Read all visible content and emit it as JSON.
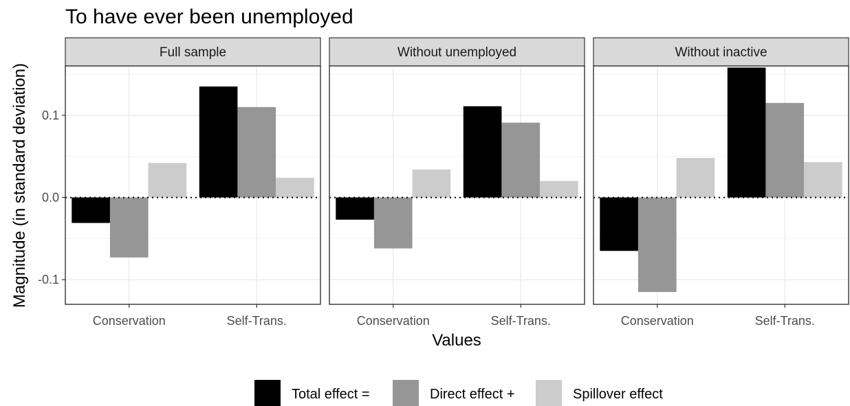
{
  "chart_data": {
    "type": "bar",
    "title": "To have ever been unemployed",
    "xlabel": "Values",
    "ylabel": "Magnitude (in standard deviation)",
    "ylim": [
      -0.13,
      0.16
    ],
    "yticks": [
      -0.1,
      0.0,
      0.1
    ],
    "ytick_labels": [
      "-0.1",
      "0.0",
      "0.1"
    ],
    "categories": [
      "Conservation",
      "Self-Trans."
    ],
    "grid": true,
    "reference_line": {
      "y": 0,
      "style": "dotted"
    },
    "legend_position": "bottom",
    "series": [
      {
        "name": "Total effect =",
        "color": "#000000"
      },
      {
        "name": "Direct effect +",
        "color": "#969696"
      },
      {
        "name": "Spillover effect",
        "color": "#cccccc"
      }
    ],
    "panels": [
      {
        "label": "Full sample",
        "values": [
          [
            -0.031,
            0.135
          ],
          [
            -0.073,
            0.11
          ],
          [
            0.042,
            0.024
          ]
        ]
      },
      {
        "label": "Without unemployed",
        "values": [
          [
            -0.027,
            0.111
          ],
          [
            -0.062,
            0.091
          ],
          [
            0.034,
            0.02
          ]
        ]
      },
      {
        "label": "Without inactive",
        "values": [
          [
            -0.065,
            0.158
          ],
          [
            -0.115,
            0.115
          ],
          [
            0.048,
            0.043
          ]
        ]
      }
    ]
  }
}
